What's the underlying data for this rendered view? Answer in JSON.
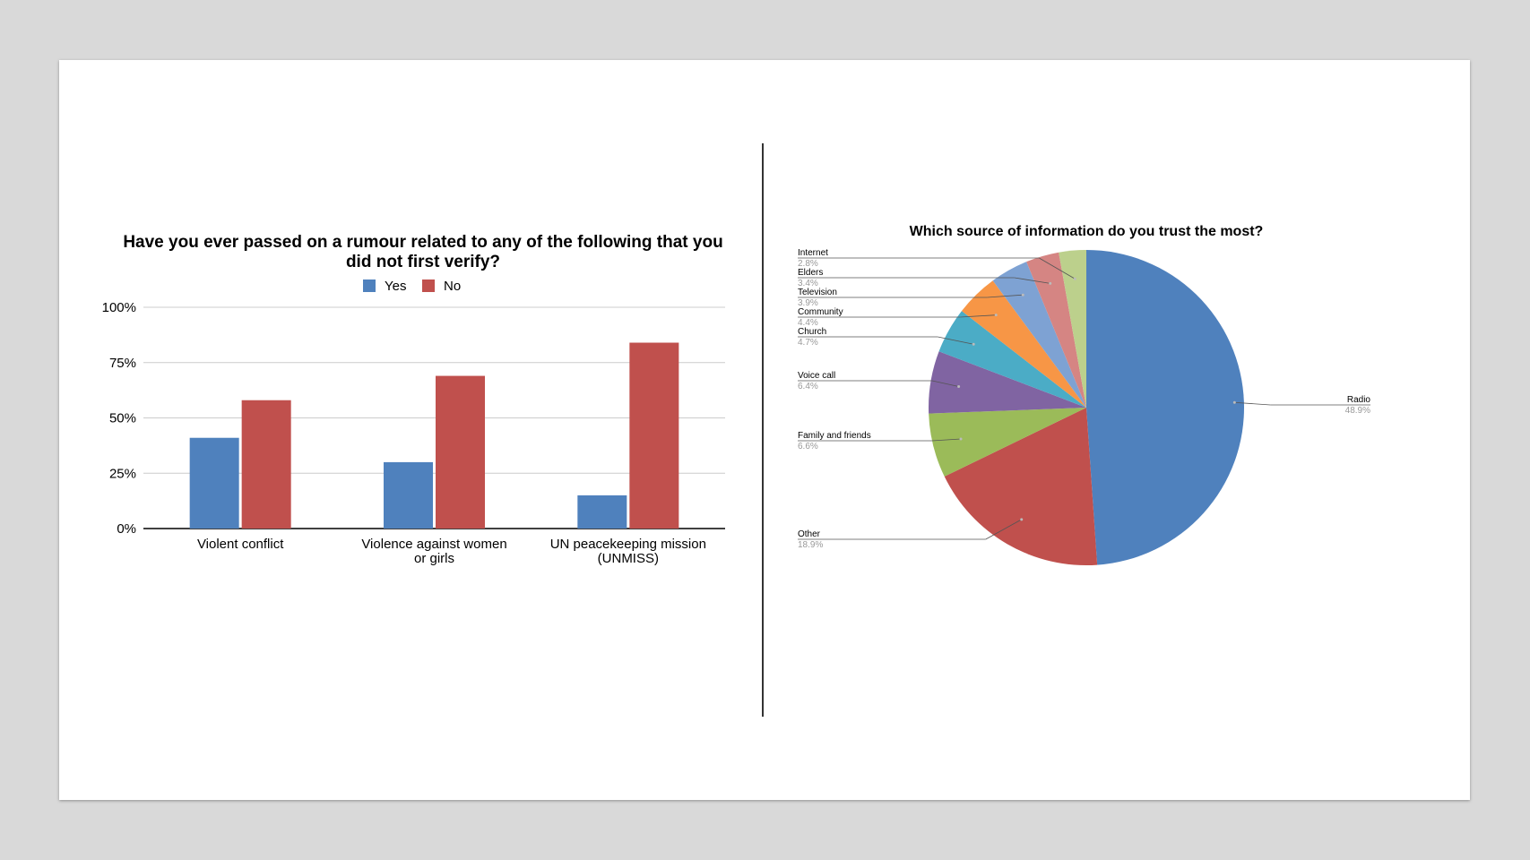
{
  "chart_data": [
    {
      "type": "bar",
      "title": "Have you ever passed on a rumour related to any of the following that you did not first verify?",
      "title_lines": [
        "Have you ever passed on a rumour related to any of the following that you",
        "did not first verify?"
      ],
      "categories": [
        "Violent conflict",
        "Violence against women or girls",
        "UN peacekeeping mission (UNMISS)"
      ],
      "category_lines": [
        [
          "Violent conflict"
        ],
        [
          "Violence against women",
          "or girls"
        ],
        [
          "UN peacekeeping mission",
          "(UNMISS)"
        ]
      ],
      "series": [
        {
          "name": "Yes",
          "values": [
            41,
            30,
            15
          ],
          "color": "#4f81bd"
        },
        {
          "name": "No",
          "values": [
            58,
            69,
            84
          ],
          "color": "#c0504d"
        }
      ],
      "ylim": [
        0,
        100
      ],
      "yticks": [
        "0%",
        "25%",
        "50%",
        "75%",
        "100%"
      ],
      "grid": true,
      "legend_position": "top"
    },
    {
      "type": "pie",
      "title": "Which source of information do you trust the most?",
      "slices": [
        {
          "label": "Radio",
          "pct_label": "48.9%",
          "value": 48.9,
          "color": "#4f81bd"
        },
        {
          "label": "Other",
          "pct_label": "18.9%",
          "value": 18.9,
          "color": "#c0504d"
        },
        {
          "label": "Family and friends",
          "pct_label": "6.6%",
          "value": 6.6,
          "color": "#9bbb59"
        },
        {
          "label": "Voice call",
          "pct_label": "6.4%",
          "value": 6.4,
          "color": "#8064a2"
        },
        {
          "label": "Church",
          "pct_label": "4.7%",
          "value": 4.7,
          "color": "#4bacc6"
        },
        {
          "label": "Community",
          "pct_label": "4.4%",
          "value": 4.4,
          "color": "#f79646"
        },
        {
          "label": "Television",
          "pct_label": "3.9%",
          "value": 3.9,
          "color": "#7ea2d3"
        },
        {
          "label": "Elders",
          "pct_label": "3.4%",
          "value": 3.4,
          "color": "#d58583"
        },
        {
          "label": "Internet",
          "pct_label": "2.8%",
          "value": 2.8,
          "color": "#bcd08c"
        }
      ],
      "legend_position": "callout labels"
    }
  ]
}
